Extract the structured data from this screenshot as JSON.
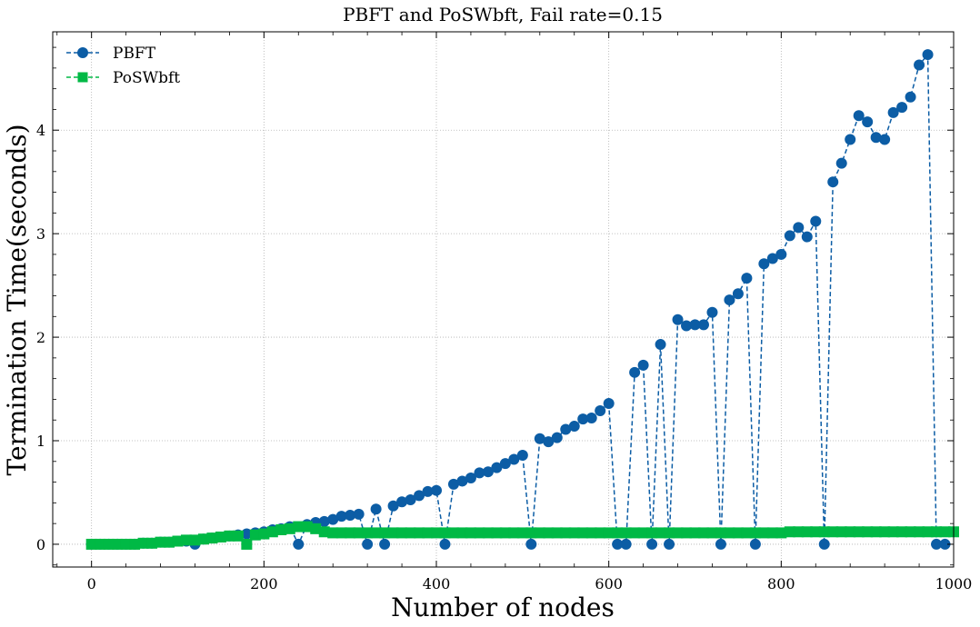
{
  "chart_data": {
    "type": "line",
    "title": "PBFT and PoSWbft, Fail rate=0.15",
    "xlabel": "Number of nodes",
    "ylabel": "Termination Time(seconds)",
    "xlim": [
      -45,
      1000
    ],
    "ylim": [
      -0.22,
      4.95
    ],
    "xticks": [
      0,
      200,
      400,
      600,
      800,
      1000
    ],
    "yticks": [
      0,
      1,
      2,
      3,
      4
    ],
    "grid": true,
    "legend_position": "top-left",
    "series": [
      {
        "name": "PBFT",
        "color": "#0C5DA5",
        "marker": "circle",
        "linestyle": "dashed",
        "x": [
          0,
          10,
          20,
          30,
          40,
          50,
          60,
          70,
          80,
          90,
          100,
          110,
          120,
          130,
          140,
          150,
          160,
          170,
          180,
          190,
          200,
          210,
          220,
          230,
          240,
          250,
          260,
          270,
          280,
          290,
          300,
          310,
          320,
          330,
          340,
          350,
          360,
          370,
          380,
          390,
          400,
          410,
          420,
          430,
          440,
          450,
          460,
          470,
          480,
          490,
          500,
          510,
          520,
          530,
          540,
          550,
          560,
          570,
          580,
          590,
          600,
          610,
          620,
          630,
          640,
          650,
          660,
          670,
          680,
          690,
          700,
          710,
          720,
          730,
          740,
          750,
          760,
          770,
          780,
          790,
          800,
          810,
          820,
          830,
          840,
          850,
          860,
          870,
          880,
          890,
          900,
          910,
          920,
          930,
          940,
          950,
          960,
          970,
          980,
          990
        ],
        "y": [
          0.0,
          0.0,
          0.0,
          0.0,
          0.0,
          0.0,
          0.01,
          0.01,
          0.02,
          0.02,
          0.03,
          0.03,
          0.0,
          0.05,
          0.06,
          0.07,
          0.08,
          0.09,
          0.1,
          0.11,
          0.12,
          0.14,
          0.15,
          0.17,
          0.0,
          0.19,
          0.21,
          0.22,
          0.24,
          0.27,
          0.28,
          0.29,
          0.0,
          0.34,
          0.0,
          0.37,
          0.41,
          0.43,
          0.47,
          0.51,
          0.52,
          0.0,
          0.58,
          0.61,
          0.64,
          0.69,
          0.7,
          0.74,
          0.78,
          0.82,
          0.86,
          0.0,
          1.02,
          0.99,
          1.03,
          1.11,
          1.14,
          1.21,
          1.22,
          1.29,
          1.36,
          0.0,
          0.0,
          1.66,
          1.73,
          0.0,
          1.93,
          0.0,
          2.17,
          2.11,
          2.12,
          2.12,
          2.24,
          0.0,
          2.36,
          2.42,
          2.57,
          0.0,
          2.71,
          2.76,
          2.8,
          2.98,
          3.06,
          2.97,
          3.12,
          0.0,
          3.5,
          3.68,
          3.91,
          4.14,
          4.08,
          3.93,
          3.91,
          4.17,
          4.22,
          4.32,
          4.63,
          4.73,
          0.0,
          0.0
        ]
      },
      {
        "name": "PoSWbft",
        "color": "#00B945",
        "marker": "square",
        "linestyle": "dashed",
        "x": [
          0,
          10,
          20,
          30,
          40,
          50,
          60,
          70,
          80,
          90,
          100,
          110,
          120,
          130,
          140,
          150,
          160,
          170,
          180,
          190,
          200,
          210,
          220,
          230,
          240,
          250,
          260,
          270,
          280,
          290,
          300,
          310,
          320,
          330,
          340,
          350,
          360,
          370,
          380,
          390,
          400,
          410,
          420,
          430,
          440,
          450,
          460,
          470,
          480,
          490,
          500,
          510,
          520,
          530,
          540,
          550,
          560,
          570,
          580,
          590,
          600,
          610,
          620,
          630,
          640,
          650,
          660,
          670,
          680,
          690,
          700,
          710,
          720,
          730,
          740,
          750,
          760,
          770,
          780,
          790,
          800,
          810,
          820,
          830,
          840,
          850,
          860,
          870,
          880,
          890,
          900,
          910,
          920,
          930,
          940,
          950,
          960,
          970,
          980,
          990,
          1000
        ],
        "y": [
          0.0,
          0.0,
          0.0,
          0.0,
          0.0,
          0.0,
          0.01,
          0.01,
          0.02,
          0.02,
          0.03,
          0.04,
          0.04,
          0.05,
          0.06,
          0.07,
          0.08,
          0.08,
          0.0,
          0.09,
          0.1,
          0.12,
          0.14,
          0.15,
          0.17,
          0.17,
          0.15,
          0.12,
          0.11,
          0.11,
          0.11,
          0.11,
          0.11,
          0.11,
          0.11,
          0.11,
          0.11,
          0.11,
          0.11,
          0.11,
          0.11,
          0.11,
          0.11,
          0.11,
          0.11,
          0.11,
          0.11,
          0.11,
          0.11,
          0.11,
          0.11,
          0.11,
          0.11,
          0.11,
          0.11,
          0.11,
          0.11,
          0.11,
          0.11,
          0.11,
          0.11,
          0.11,
          0.11,
          0.11,
          0.11,
          0.11,
          0.11,
          0.11,
          0.11,
          0.11,
          0.11,
          0.11,
          0.11,
          0.11,
          0.11,
          0.11,
          0.11,
          0.11,
          0.11,
          0.11,
          0.11,
          0.12,
          0.12,
          0.12,
          0.12,
          0.12,
          0.12,
          0.12,
          0.12,
          0.12,
          0.12,
          0.12,
          0.12,
          0.12,
          0.12,
          0.12,
          0.12,
          0.12,
          0.12,
          0.12,
          0.12
        ]
      }
    ]
  }
}
